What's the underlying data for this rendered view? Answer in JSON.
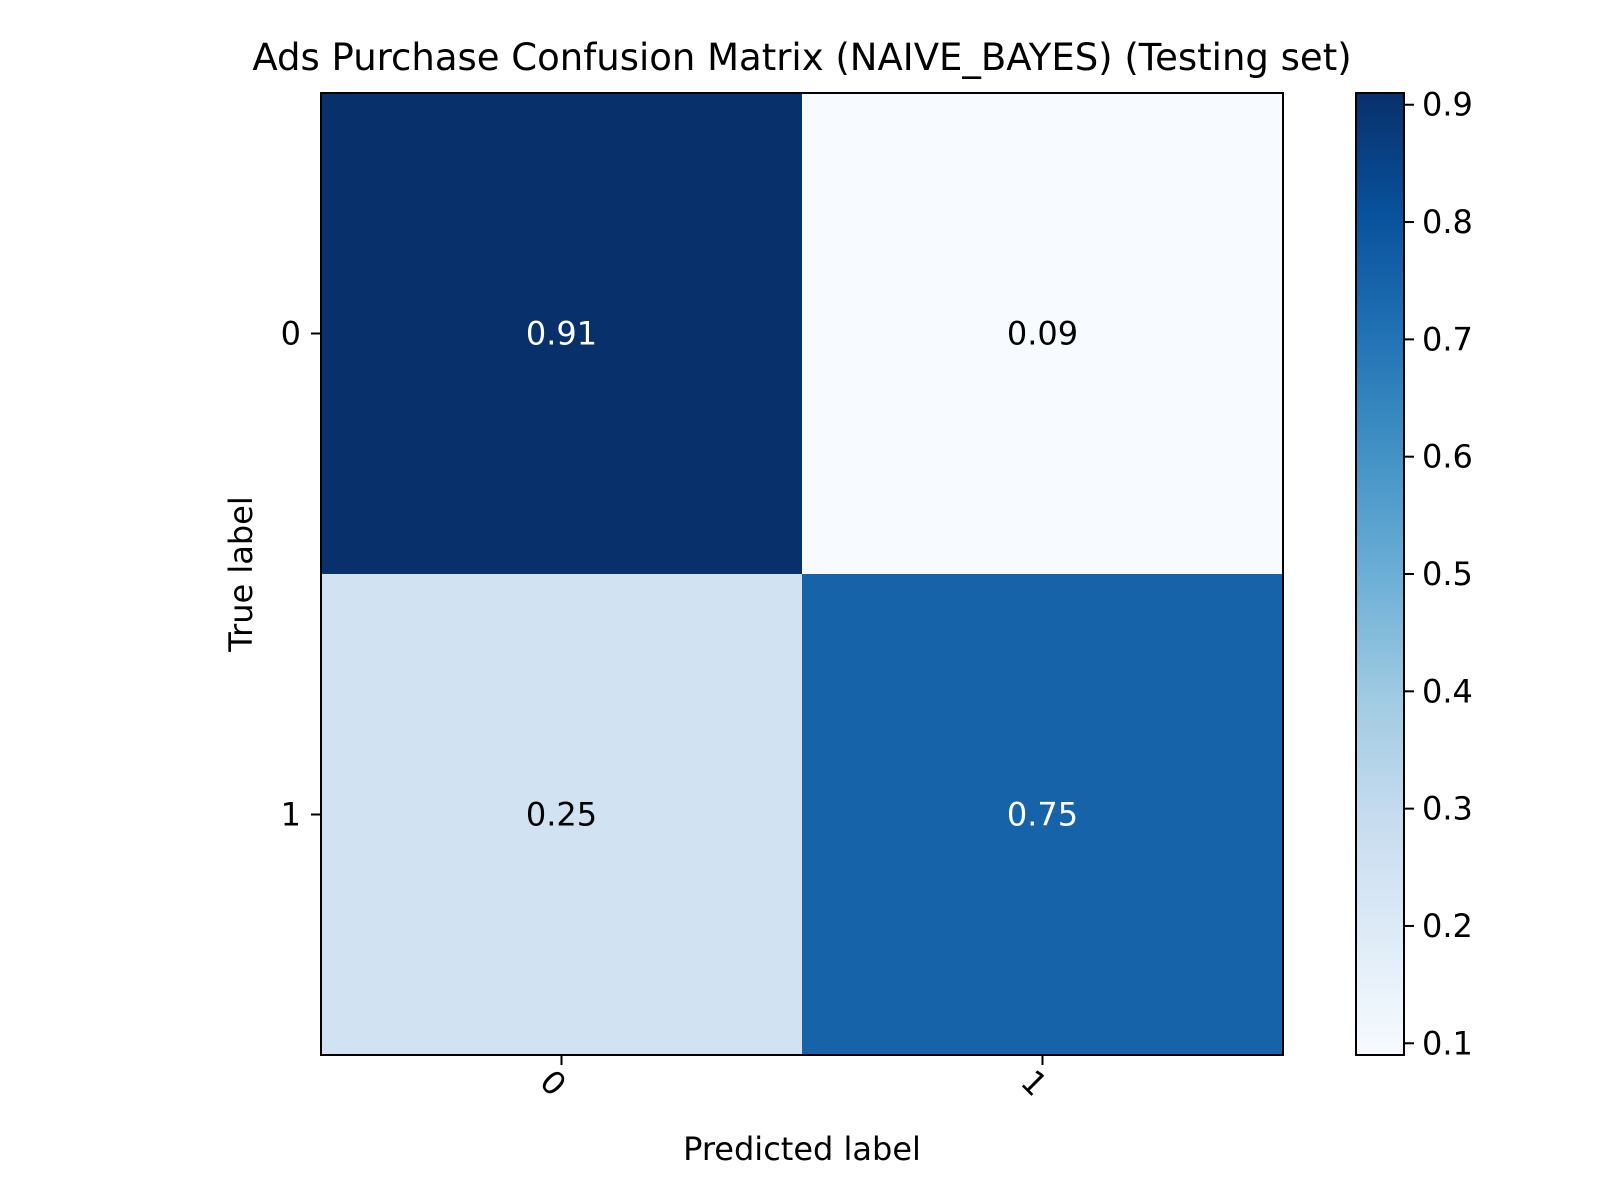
{
  "chart_data": {
    "type": "heatmap",
    "title": "Ads Purchase Confusion Matrix (NAIVE_BAYES) (Testing set)",
    "xlabel": "Predicted label",
    "ylabel": "True label",
    "x_categories": [
      "0",
      "1"
    ],
    "y_categories": [
      "0",
      "1"
    ],
    "values": [
      [
        0.91,
        0.09
      ],
      [
        0.25,
        0.75
      ]
    ],
    "cell_text": [
      [
        "0.91",
        "0.09"
      ],
      [
        "0.25",
        "0.75"
      ]
    ],
    "colormap": "Blues",
    "color_range": [
      0.09,
      0.91
    ],
    "colorbar": {
      "ticks": [
        0.1,
        0.2,
        0.3,
        0.4,
        0.5,
        0.6,
        0.7,
        0.8,
        0.9
      ],
      "tick_labels": [
        "0.1",
        "0.2",
        "0.3",
        "0.4",
        "0.5",
        "0.6",
        "0.7",
        "0.8",
        "0.9"
      ]
    },
    "x_tick_rotation": 45,
    "grid": false
  }
}
